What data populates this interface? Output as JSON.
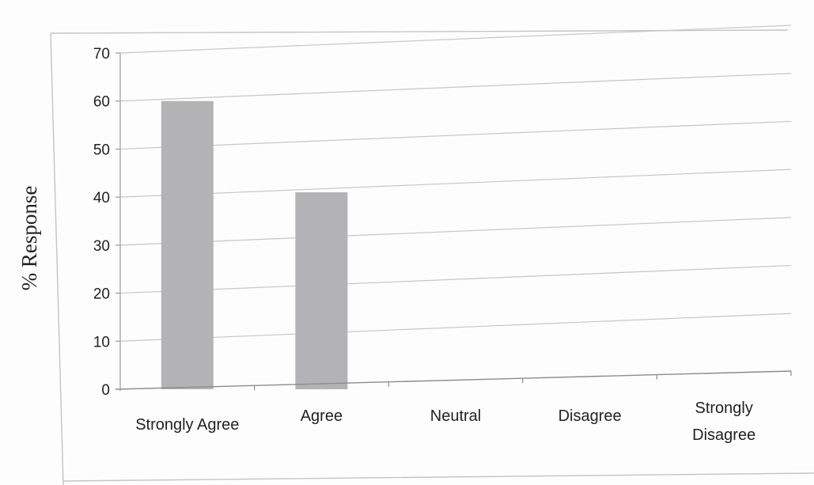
{
  "chart_data": {
    "type": "bar",
    "title": "",
    "xlabel": "",
    "ylabel": "% Response",
    "categories": [
      "Strongly Agree",
      "Agree",
      "Neutral",
      "Disagree",
      "Strongly Disagree"
    ],
    "values": [
      60,
      41,
      0,
      0,
      0
    ],
    "ylim": [
      0,
      70
    ],
    "yticks": [
      0,
      10,
      20,
      30,
      40,
      50,
      60,
      70
    ],
    "grid": true,
    "legend": "none",
    "bar_color": "#b3b3b5"
  }
}
